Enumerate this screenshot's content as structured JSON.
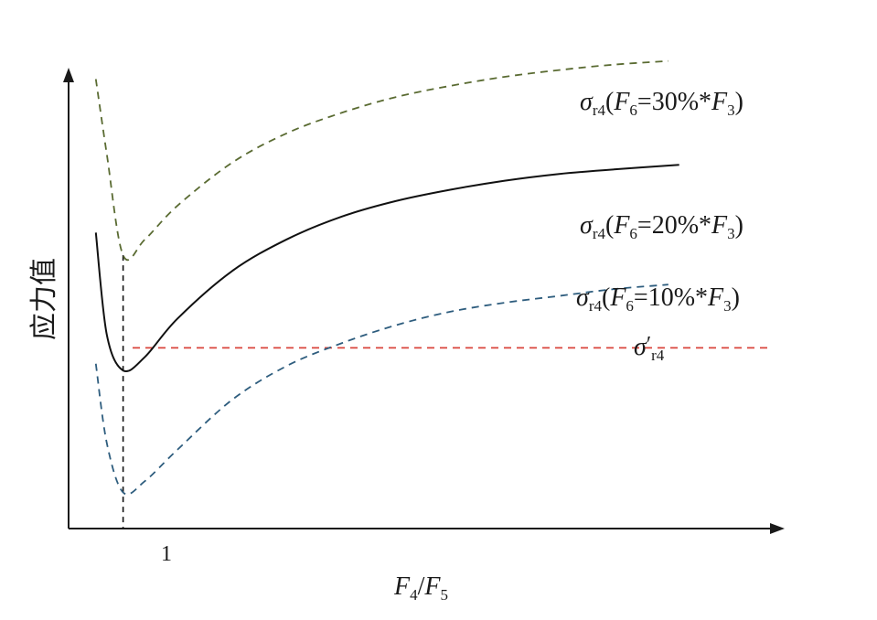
{
  "chart_data": {
    "type": "line",
    "xlabel": {
      "main": "F",
      "sub1": "4",
      "sep": "/",
      "main2": "F",
      "sub2": "5"
    },
    "ylabel": "应力值",
    "x_ticks": [
      {
        "x": 1.0,
        "label": "1"
      }
    ],
    "xlim": [
      0.5,
      7.0
    ],
    "ylim": [
      0,
      10
    ],
    "grid": false,
    "series": [
      {
        "id": "f6_30",
        "label": {
          "sigma": "σ",
          "sub": "r4",
          "open": "(",
          "F": "F",
          "fsub": "6",
          "rest": "=30%*",
          "F3": "F",
          "f3sub": "3",
          "close": ")"
        },
        "style": "dashed",
        "color": "#5a6b32",
        "x": [
          0.75,
          0.85,
          1.0,
          1.2,
          1.5,
          2.0,
          2.5,
          3.0,
          3.5,
          4.0,
          4.5,
          5.0,
          5.5,
          6.0
        ],
        "y": [
          9.95,
          8.3,
          6.05,
          6.4,
          7.15,
          8.1,
          8.75,
          9.2,
          9.55,
          9.8,
          10.0,
          10.15,
          10.27,
          10.35
        ]
      },
      {
        "id": "f6_20",
        "label": {
          "sigma": "σ",
          "sub": "r4",
          "open": "(",
          "F": "F",
          "fsub": "6",
          "rest": "=20%*",
          "F3": "F",
          "f3sub": "3",
          "close": ")"
        },
        "style": "solid",
        "color": "#111111",
        "x": [
          0.75,
          0.85,
          1.0,
          1.2,
          1.5,
          2.0,
          2.5,
          3.0,
          3.5,
          4.0,
          4.5,
          5.0,
          5.5,
          6.1
        ],
        "y": [
          6.55,
          4.3,
          3.5,
          3.8,
          4.65,
          5.7,
          6.4,
          6.9,
          7.25,
          7.5,
          7.7,
          7.85,
          7.95,
          8.05
        ]
      },
      {
        "id": "f6_10",
        "label": {
          "sigma": "σ",
          "sub": "r4",
          "open": "(",
          "F": "F",
          "fsub": "6",
          "rest": "=10%*",
          "F3": "F",
          "f3sub": "3",
          "close": ")"
        },
        "style": "dashed",
        "color": "#2e5d7e",
        "x": [
          0.75,
          0.85,
          1.0,
          1.2,
          1.5,
          2.0,
          2.5,
          3.0,
          3.5,
          4.0,
          4.5,
          5.0,
          5.5,
          6.0
        ],
        "y": [
          3.65,
          1.9,
          0.8,
          1.05,
          1.75,
          2.85,
          3.6,
          4.1,
          4.5,
          4.8,
          5.0,
          5.15,
          5.3,
          5.4
        ]
      }
    ],
    "reference_line": {
      "label": {
        "sigma": "σ",
        "prime": "′",
        "sub": "r4"
      },
      "y": 4.0,
      "style": "dashed",
      "color": "#d9443b"
    },
    "vertical_marker": {
      "x": 1.0,
      "style": "dashed",
      "color": "#111111"
    }
  }
}
